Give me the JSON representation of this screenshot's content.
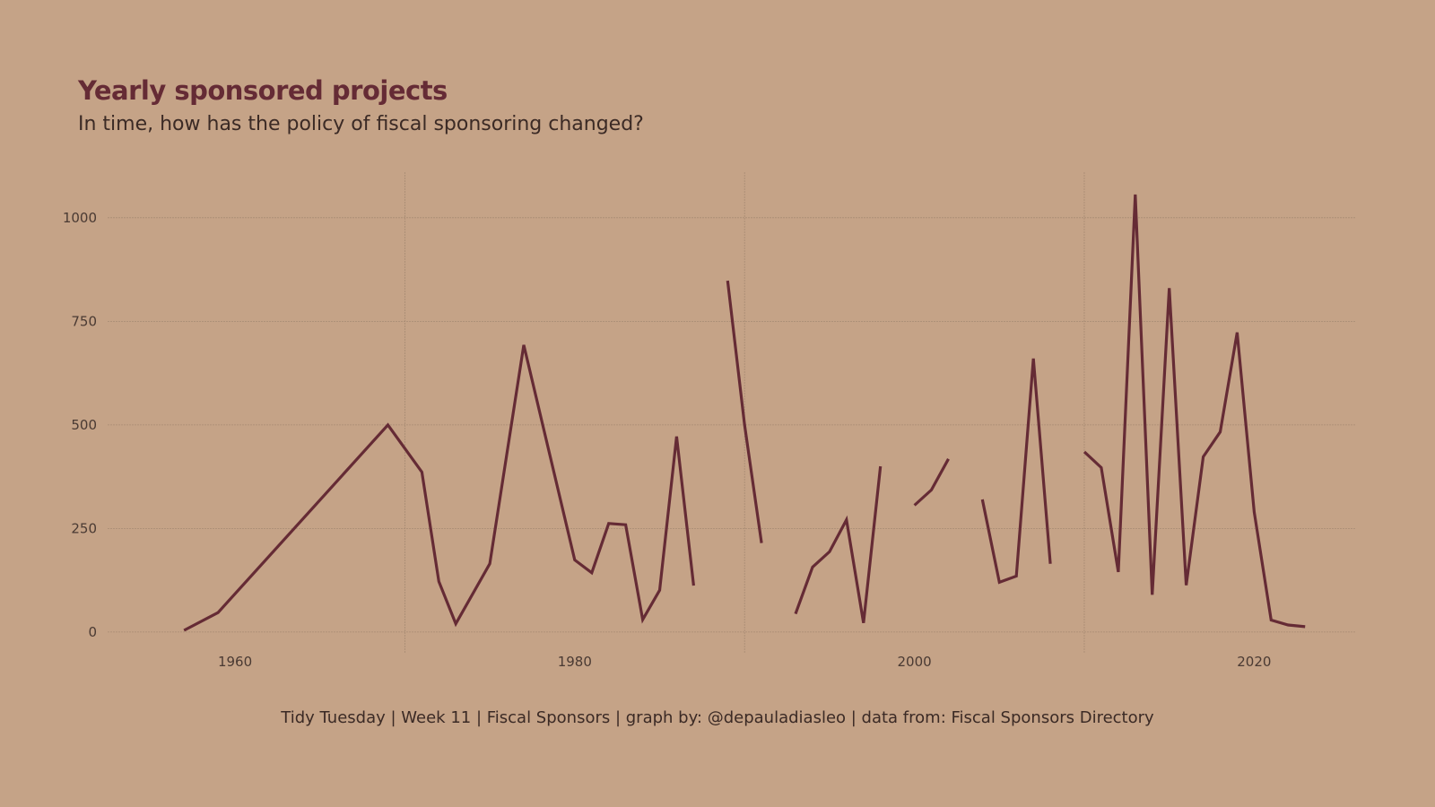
{
  "chart_data": {
    "type": "line",
    "title": "Yearly sponsored projects",
    "subtitle": "In time, how has the policy of fiscal sponsoring changed?",
    "caption": "Tidy Tuesday | Week 11 | Fiscal Sponsors | graph by: @depauladiasleo | data from: Fiscal Sponsors Directory",
    "xlabel": "",
    "ylabel": "",
    "xlim": [
      1952.5,
      2026
    ],
    "ylim": [
      -50,
      1110
    ],
    "x_ticks": [
      1960,
      1980,
      2000,
      2020
    ],
    "x_tick_labels": [
      "1960",
      "1980",
      "2000",
      "2020"
    ],
    "x_minor_grid": [
      1970,
      1990,
      2010
    ],
    "y_ticks": [
      0,
      250,
      500,
      750,
      1000
    ],
    "y_tick_labels": [
      "0",
      "250",
      "500",
      "750",
      "1000"
    ],
    "grid": true,
    "line_color": "#652b35",
    "series": [
      {
        "segments": [
          [
            [
              1957,
              4
            ],
            [
              1959,
              47
            ],
            [
              1969,
              500
            ],
            [
              1971,
              386
            ],
            [
              1972,
              122
            ],
            [
              1973,
              20
            ],
            [
              1975,
              165
            ],
            [
              1977,
              693
            ],
            [
              1980,
              174
            ],
            [
              1981,
              143
            ],
            [
              1982,
              262
            ],
            [
              1983,
              259
            ],
            [
              1984,
              30
            ],
            [
              1985,
              101
            ],
            [
              1986,
              472
            ],
            [
              1987,
              112
            ]
          ],
          [
            [
              1989,
              848
            ],
            [
              1990,
              500
            ],
            [
              1991,
              215
            ]
          ],
          [
            [
              1993,
              44
            ],
            [
              1994,
              157
            ],
            [
              1995,
              194
            ],
            [
              1996,
              271
            ],
            [
              1997,
              22
            ],
            [
              1998,
              400
            ]
          ],
          [
            [
              2000,
              306
            ],
            [
              2001,
              343
            ],
            [
              2002,
              418
            ]
          ],
          [
            [
              2004,
              320
            ],
            [
              2005,
              120
            ],
            [
              2006,
              135
            ],
            [
              2007,
              660
            ],
            [
              2008,
              165
            ]
          ],
          [
            [
              2010,
              435
            ],
            [
              2011,
              397
            ],
            [
              2012,
              145
            ],
            [
              2013,
              1056
            ],
            [
              2014,
              90
            ],
            [
              2015,
              830
            ],
            [
              2016,
              113
            ],
            [
              2017,
              423
            ],
            [
              2018,
              483
            ],
            [
              2019,
              723
            ],
            [
              2020,
              290
            ],
            [
              2021,
              29
            ],
            [
              2022,
              17
            ],
            [
              2023,
              13
            ]
          ]
        ]
      }
    ]
  },
  "colors": {
    "background": "#c5a387",
    "title": "#652b35",
    "text": "#3b2a25",
    "grid": "#a78b73"
  }
}
